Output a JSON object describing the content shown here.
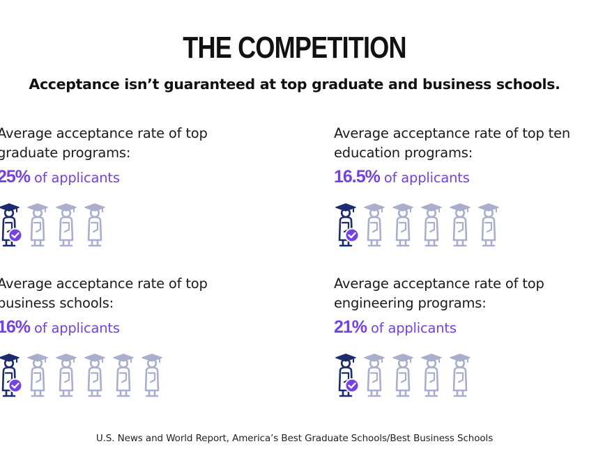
{
  "title": "THE COMPETITION",
  "subtitle": "Acceptance isn’t guaranteed at top graduate and business schools.",
  "colors": {
    "accent": "#7441e2",
    "highlight_icon": "#1c2a6e",
    "muted_icon": "#a9aecd"
  },
  "icons": {
    "person": "graduate-icon",
    "badge": "checkmark-icon"
  },
  "panels": [
    {
      "description": "Average acceptance rate of top\ngraduate programs:",
      "percent": "25%",
      "suffix": " of applicants",
      "icon_count": 4,
      "highlighted": 1
    },
    {
      "description": "Average acceptance rate of top ten\neducation programs:",
      "percent": "16.5%",
      "suffix": " of applicants",
      "icon_count": 6,
      "highlighted": 1
    },
    {
      "description": "Average acceptance rate of top\nbusiness schools:",
      "percent": "16%",
      "suffix": " of applicants",
      "icon_count": 6,
      "highlighted": 1
    },
    {
      "description": "Average acceptance rate of top\nengineering programs:",
      "percent": "21%",
      "suffix": " of applicants",
      "icon_count": 5,
      "highlighted": 1
    }
  ],
  "source": "U.S. News and World Report, America’s Best Graduate Schools/Best Business Schools"
}
